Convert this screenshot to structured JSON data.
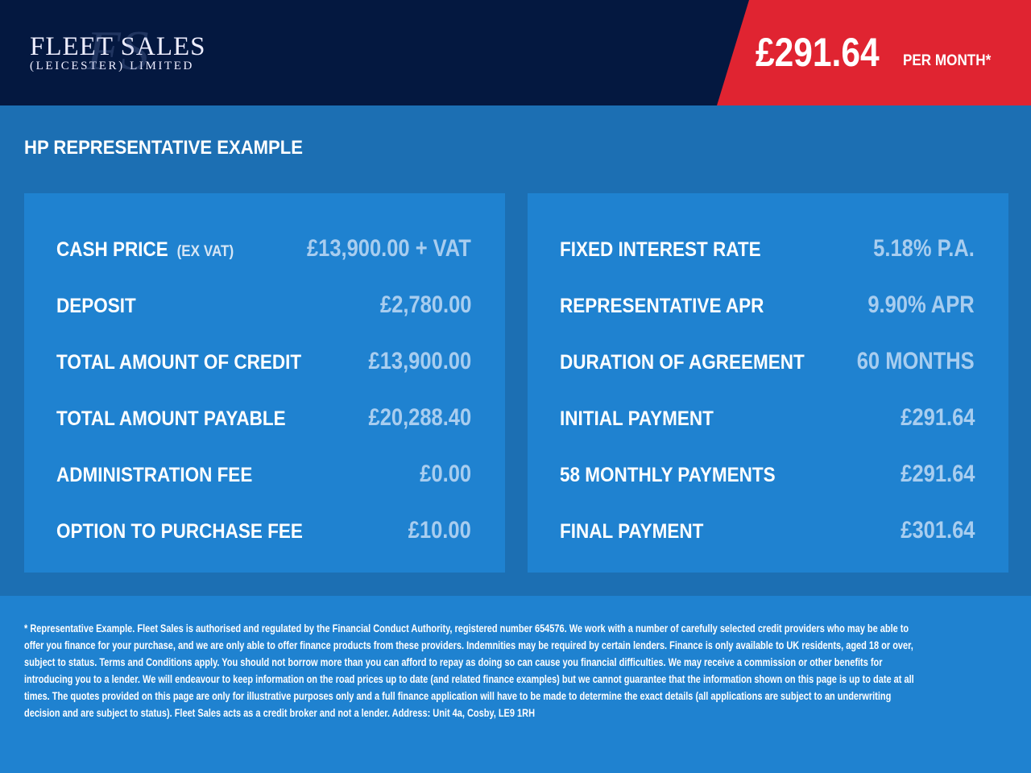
{
  "header": {
    "logo_line1": "FLEET SALES",
    "logo_line2": "(LEICESTER) LIMITED",
    "logo_monogram": "FS",
    "price": "£291.64",
    "price_suffix": "PER MONTH*"
  },
  "section_title": "HP REPRESENTATIVE EXAMPLE",
  "left_rows": [
    {
      "label": "CASH PRICE",
      "note": "(EX VAT)",
      "value": "£13,900.00 + VAT"
    },
    {
      "label": "DEPOSIT",
      "value": "£2,780.00"
    },
    {
      "label": "TOTAL AMOUNT OF CREDIT",
      "value": "£13,900.00"
    },
    {
      "label": "TOTAL AMOUNT PAYABLE",
      "value": "£20,288.40"
    },
    {
      "label": "ADMINISTRATION FEE",
      "value": "£0.00"
    },
    {
      "label": "OPTION TO PURCHASE FEE",
      "value": "£10.00"
    }
  ],
  "right_rows": [
    {
      "label": "FIXED INTEREST RATE",
      "value": "5.18% P.A."
    },
    {
      "label": "REPRESENTATIVE APR",
      "value": "9.90% APR"
    },
    {
      "label": "DURATION OF AGREEMENT",
      "value": "60 MONTHS"
    },
    {
      "label": "INITIAL PAYMENT",
      "value": "£291.64"
    },
    {
      "label": "58 MONTHLY PAYMENTS",
      "value": "£291.64"
    },
    {
      "label": "FINAL PAYMENT",
      "value": "£301.64"
    }
  ],
  "disclaimer": "* Representative Example. Fleet Sales is authorised and regulated by the Financial Conduct Authority, registered number 654576. We work with a number of carefully selected credit providers who may be able to offer you finance for your purchase, and we are only able to offer finance products from these providers. Indemnities may be required by certain lenders. Finance is only available to UK residents, aged 18 or over, subject to status. Terms and Conditions apply. You should not borrow more than you can afford to repay as doing so can cause you financial difficulties. We may receive a commission or other benefits for introducing you to a lender. We will endeavour to keep information on the road prices up to date (and related finance examples) but we cannot guarantee that the information shown on this page is up to date at all times. The quotes provided on this page are only for illustrative purposes only and a full finance application will have to be made to determine the exact details (all applications are subject to an underwriting decision and are subject to status). Fleet Sales acts as a credit broker and not a lender. Address: Unit 4a, Cosby, LE9 1RH",
  "colors": {
    "header": "#041840",
    "price_badge": "#e02431",
    "background": "#1c6fb3",
    "panel": "#1f82d0",
    "value_text": "#a8cdef"
  }
}
